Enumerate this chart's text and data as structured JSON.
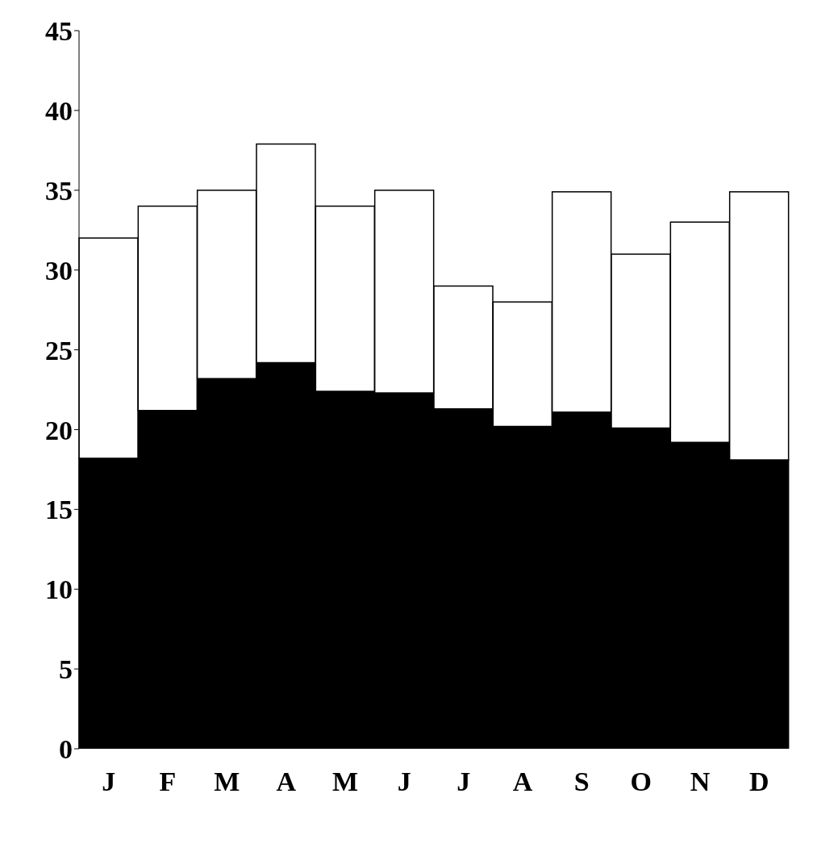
{
  "chart_data": {
    "type": "bar",
    "stacked": true,
    "categories": [
      "J",
      "F",
      "M",
      "A",
      "M",
      "J",
      "J",
      "A",
      "S",
      "O",
      "N",
      "D"
    ],
    "series": [
      {
        "color": "#000000",
        "values": [
          18.2,
          21.2,
          23.2,
          24.2,
          22.4,
          22.3,
          21.3,
          20.2,
          21.1,
          20.1,
          19.2,
          18.1
        ]
      },
      {
        "color": "#ffffff",
        "values": [
          13.8,
          12.8,
          11.8,
          13.7,
          11.6,
          12.7,
          7.7,
          7.8,
          13.8,
          10.9,
          13.8,
          16.8
        ]
      }
    ],
    "ylim": [
      0,
      45
    ],
    "yticks": [
      0,
      5,
      10,
      15,
      20,
      25,
      30,
      35,
      40,
      45
    ],
    "grid": false,
    "legend": false
  }
}
